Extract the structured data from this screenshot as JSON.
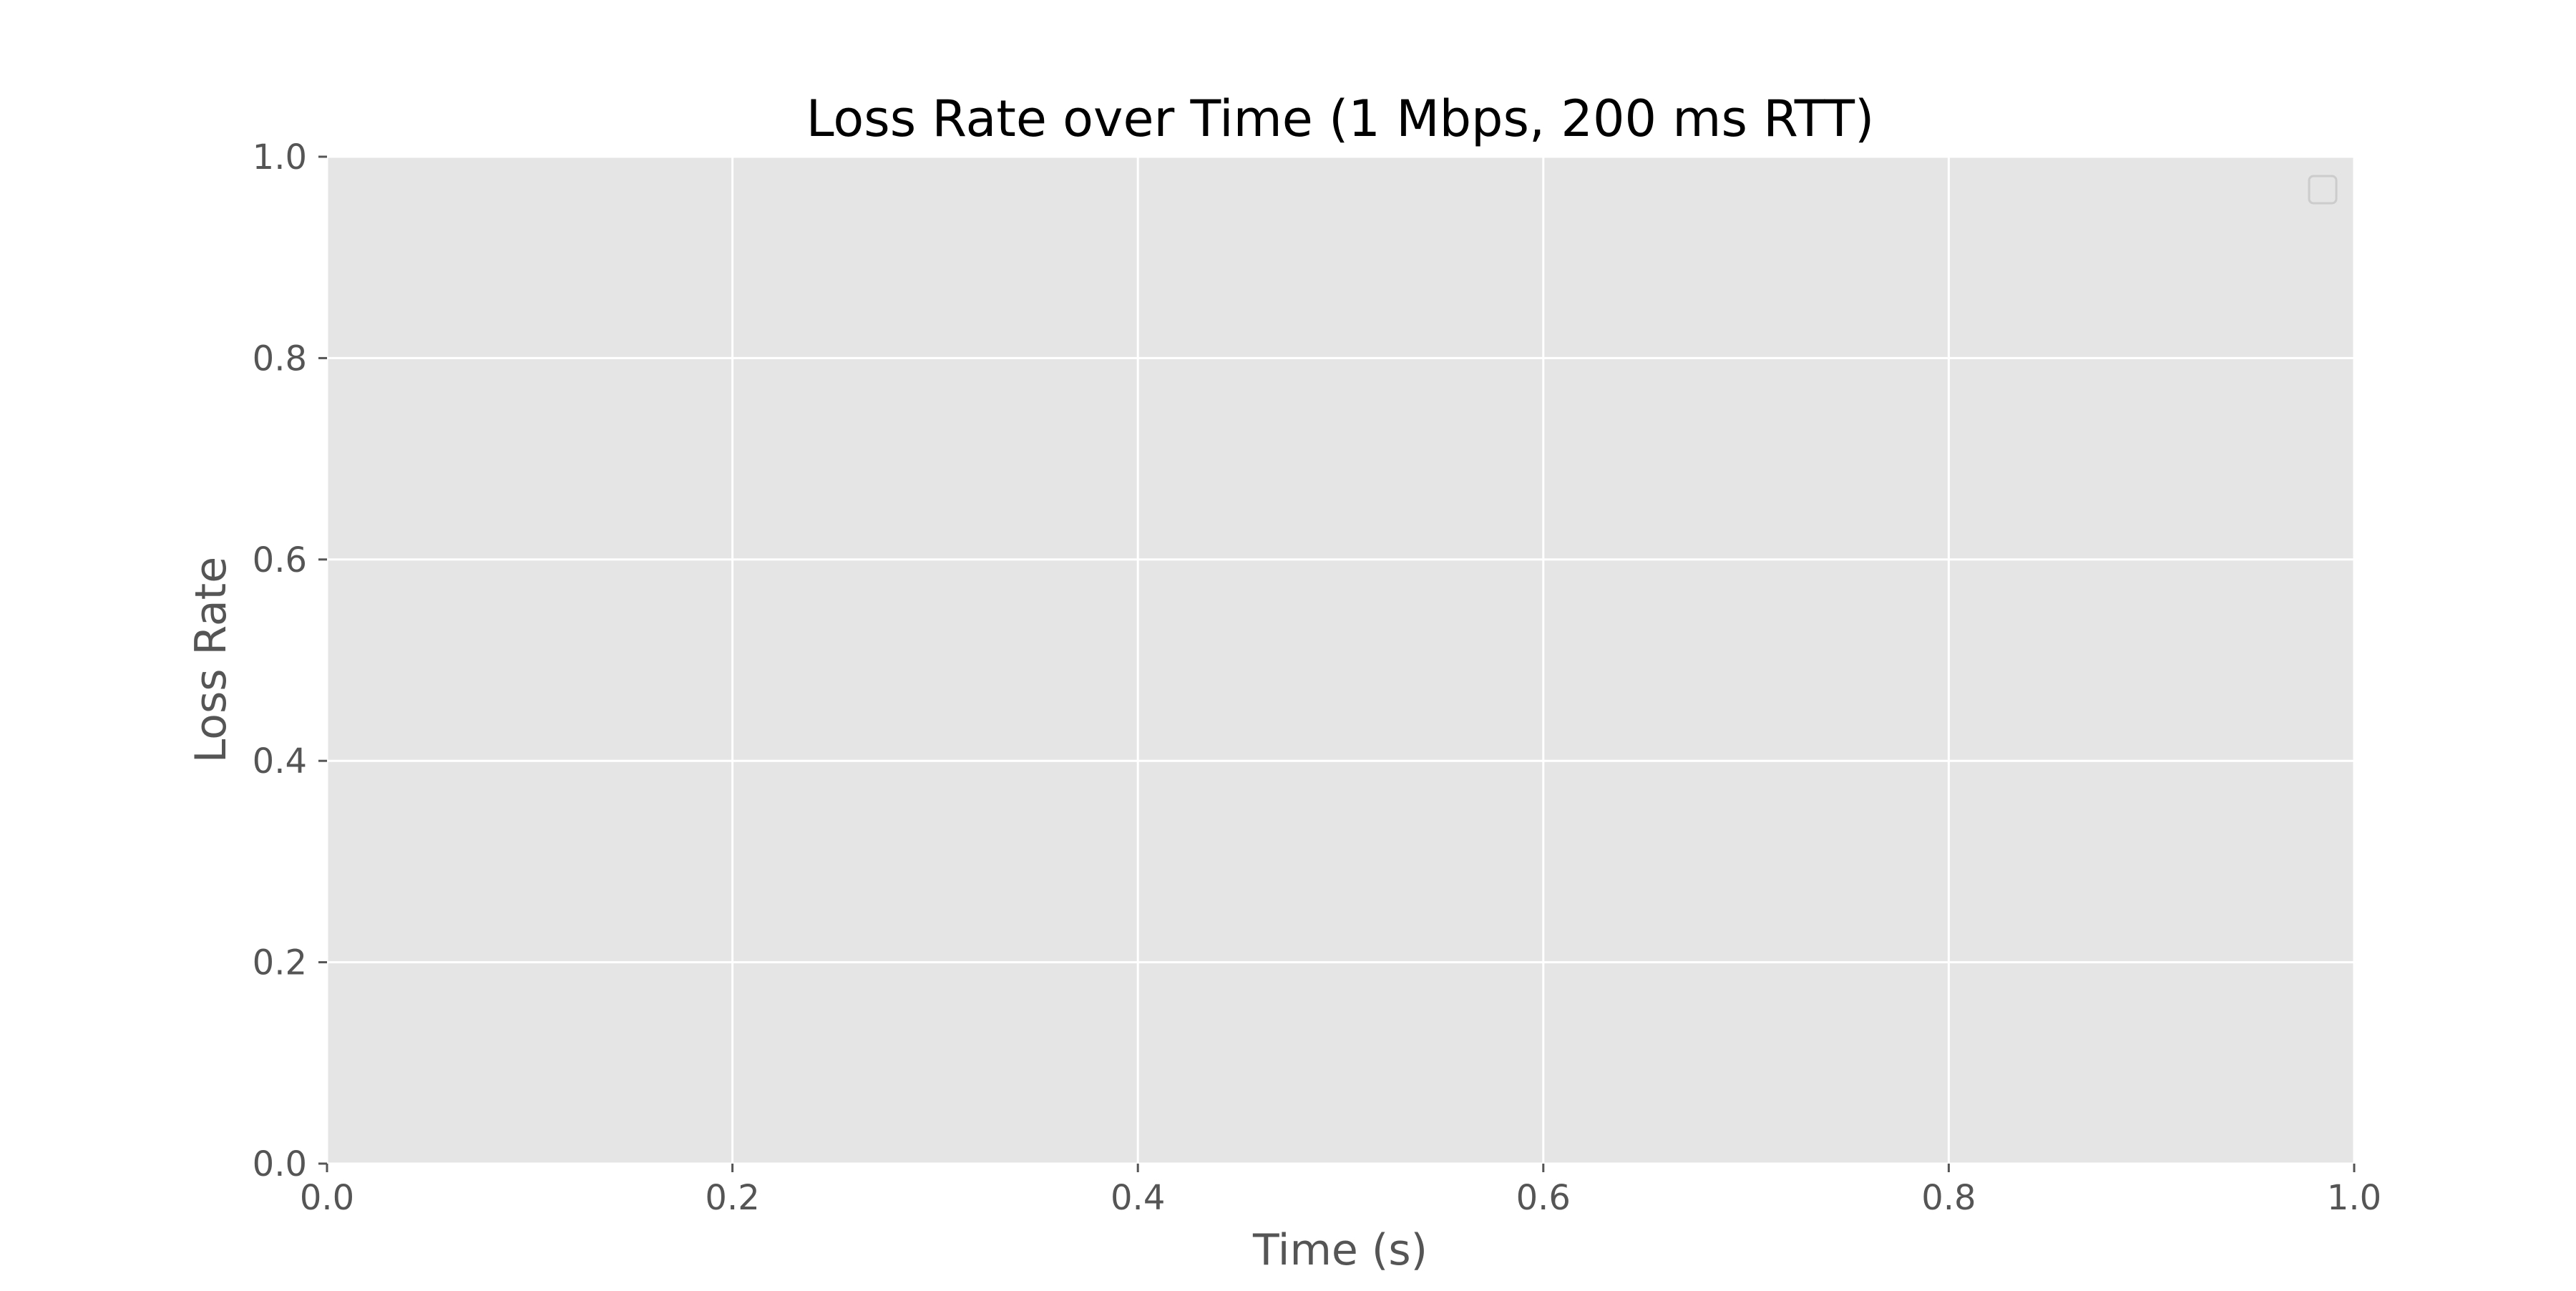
{
  "chart_data": {
    "type": "line",
    "title": "Loss Rate over Time (1 Mbps, 200 ms RTT)",
    "xlabel": "Time (s)",
    "ylabel": "Loss Rate",
    "xlim": [
      0.0,
      1.0
    ],
    "ylim": [
      0.0,
      1.0
    ],
    "x_ticks": [
      "0.0",
      "0.2",
      "0.4",
      "0.6",
      "0.8",
      "1.0"
    ],
    "y_ticks": [
      "0.0",
      "0.2",
      "0.4",
      "0.6",
      "0.8",
      "1.0"
    ],
    "series": [],
    "grid": true,
    "legend": {
      "position": "upper right",
      "entries": []
    },
    "colors": {
      "plot_background": "#e5e5e5",
      "grid": "#ffffff",
      "tick_text": "#555555",
      "axis_label": "#555555",
      "title": "#000000",
      "legend_border": "#cccccc"
    }
  }
}
